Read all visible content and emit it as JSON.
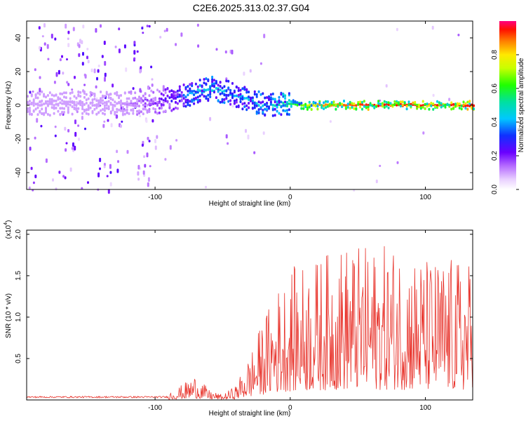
{
  "title": "C2E6.2025.313.02.37.G04",
  "spectrogram": {
    "type": "heatmap",
    "xlabel": "Height of straight line (km)",
    "ylabel": "Frequency (Hz)",
    "xlim": [
      -195,
      135
    ],
    "ylim": [
      -50,
      50
    ],
    "xticks": [
      -100,
      0,
      100
    ],
    "yticks": [
      -40,
      -20,
      0,
      20,
      40
    ],
    "colorbar": {
      "label": "Normalized spectral amplitude",
      "range": [
        0,
        1
      ],
      "ticks": [
        "0.0",
        "0.2",
        "0.4",
        "0.6",
        "0.8"
      ],
      "tick_values": [
        0.0,
        0.2,
        0.4,
        0.6,
        0.8
      ]
    },
    "ridge": {
      "height_km": [
        -195,
        -160,
        -130,
        -100,
        -85,
        -70,
        -60,
        -50,
        -40,
        -30,
        -20,
        -10,
        0,
        10,
        20,
        60,
        100,
        135
      ],
      "frequency_hz": [
        1,
        1,
        1,
        2,
        4,
        8,
        10,
        8,
        6,
        3,
        0,
        0,
        1,
        0,
        0,
        0,
        0,
        0
      ],
      "amplitude": [
        0.05,
        0.08,
        0.1,
        0.2,
        0.3,
        0.45,
        0.45,
        0.45,
        0.4,
        0.45,
        0.45,
        0.5,
        0.55,
        0.7,
        0.85,
        0.95,
        0.95,
        0.95
      ]
    }
  },
  "snr": {
    "type": "line",
    "xlabel": "Height of straight line (km)",
    "ylabel": "SNR (10 * v/v)",
    "scale_label": "(x10",
    "scale_exp": "4",
    "scale_close": ")",
    "xlim": [
      -195,
      135
    ],
    "ylim": [
      0,
      2.05
    ],
    "xticks": [
      -100,
      0,
      100
    ],
    "yticks": [
      0.5,
      1.0,
      1.5,
      2.0
    ],
    "ytick_labels": [
      "0.5",
      "1.0",
      "1.5",
      "2.0"
    ],
    "color": "#e8332b",
    "envelope": {
      "height_km": [
        -195,
        -100,
        -90,
        -80,
        -70,
        -60,
        -50,
        -40,
        -30,
        -20,
        -10,
        0,
        20,
        40,
        60,
        80,
        100,
        120,
        135
      ],
      "snr_x1e4": [
        0.03,
        0.04,
        0.08,
        0.15,
        0.25,
        0.1,
        0.05,
        0.15,
        0.45,
        0.8,
        1.1,
        1.3,
        1.4,
        1.55,
        1.5,
        1.55,
        1.4,
        1.4,
        1.35
      ]
    }
  }
}
